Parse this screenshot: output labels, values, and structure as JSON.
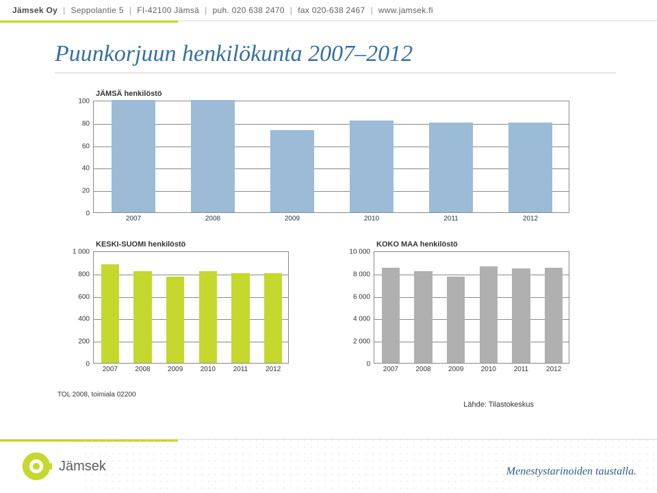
{
  "header": {
    "company": "Jämsek Oy",
    "address": "Seppolantie 5",
    "postal": "FI-42100 Jämsä",
    "phone_label": "puh.",
    "phone": "020 638 2470",
    "fax_label": "fax",
    "fax": "020-638 2467",
    "web": "www.jamsek.fi"
  },
  "title": "Puunkorjuun henkilökunta 2007–2012",
  "categories": [
    "2007",
    "2008",
    "2009",
    "2010",
    "2011",
    "2012"
  ],
  "top_chart": {
    "title": "JÄMSÄ henkilöstö",
    "type": "bar",
    "ylim": [
      0,
      100
    ],
    "ytick_step": 20,
    "yticks": [
      0,
      20,
      40,
      60,
      80,
      100
    ],
    "values": [
      100,
      100,
      73,
      82,
      80,
      80
    ],
    "bar_color": "#9bbbd7",
    "grid_color": "#888888",
    "background_color": "#ffffff",
    "bar_width": 0.55,
    "label_fontsize": 10,
    "title_fontsize": 11
  },
  "left_chart": {
    "title": "KESKI-SUOMI henkilöstö",
    "type": "bar",
    "ylim": [
      0,
      1000
    ],
    "ytick_step": 200,
    "yticks": [
      0,
      200,
      400,
      600,
      800,
      1000
    ],
    "ytick_labels": [
      "0",
      "200",
      "400",
      "600",
      "800",
      "1 000"
    ],
    "values": [
      880,
      820,
      770,
      820,
      800,
      800
    ],
    "bar_color": "#c4d82e",
    "grid_color": "#888888",
    "background_color": "#ffffff",
    "bar_width": 0.55,
    "label_fontsize": 10,
    "title_fontsize": 11
  },
  "right_chart": {
    "title": "KOKO MAA henkilöstö",
    "type": "bar",
    "ylim": [
      0,
      10000
    ],
    "ytick_step": 2000,
    "yticks": [
      0,
      2000,
      4000,
      6000,
      8000,
      10000
    ],
    "ytick_labels": [
      "0",
      "2 000",
      "4 000",
      "6 000",
      "8 000",
      "10 000"
    ],
    "values": [
      8500,
      8200,
      7700,
      8600,
      8400,
      8500
    ],
    "bar_color": "#b0b0b0",
    "grid_color": "#888888",
    "background_color": "#ffffff",
    "bar_width": 0.55,
    "label_fontsize": 10,
    "title_fontsize": 11
  },
  "footnote_left": "TOL 2008, toimiala 02200",
  "footnote_right": "Lähde: Tilastokeskus",
  "brand": {
    "name": "Jämsek",
    "slogan": "Menestystarinoiden taustalla.",
    "logo_color_outer": "#c4d82e",
    "logo_color_arrow": "#ffffff"
  }
}
